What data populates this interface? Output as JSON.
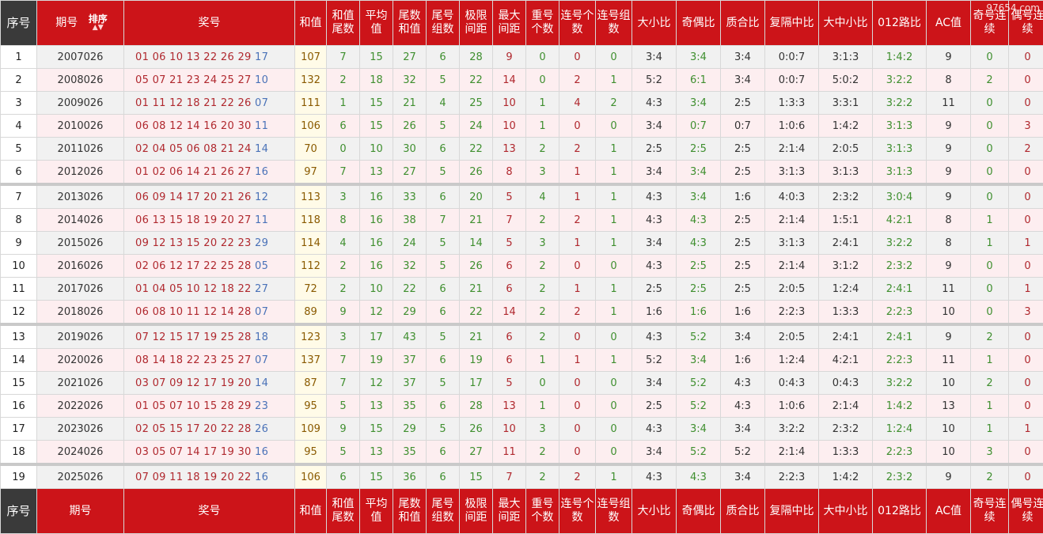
{
  "watermark": "97654.com",
  "header": {
    "seq": "序号",
    "period": "期号",
    "sort_label": "排序",
    "sort_arrows": "▲▼",
    "numbers": "奖号",
    "sum": "和值",
    "sum_tail": "和值尾数",
    "avg": "平均值",
    "tail_sum": "尾数和值",
    "tail_groups": "尾号组数",
    "range": "极限间距",
    "max_gap": "最大间距",
    "repeat": "重号个数",
    "consec_count": "连号个数",
    "consec_groups": "连号组数",
    "big_small": "大小比",
    "odd_even": "奇偶比",
    "prime_comp": "质合比",
    "repeat_gap_mid": "复隔中比",
    "big_mid_small": "大中小比",
    "mod012": "012路比",
    "ac": "AC值",
    "odd_consec": "奇号连续",
    "even_consec": "偶号连续"
  },
  "rows": [
    {
      "seq": "1",
      "period": "2007026",
      "reds": "01 06 10 13 22 26 29",
      "blue": "17",
      "sum": "107",
      "sum_tail": "7",
      "avg": "15",
      "tail_sum": "27",
      "tail_groups": "6",
      "range": "28",
      "max_gap": "9",
      "repeat": "0",
      "consec_count": "0",
      "consec_groups": "0",
      "big_small": "3:4",
      "odd_even": "3:4",
      "prime_comp": "3:4",
      "repeat_gap_mid": "0:0:7",
      "big_mid_small": "3:1:3",
      "mod012": "1:4:2",
      "ac": "9",
      "odd_consec": "0",
      "even_consec": "0"
    },
    {
      "seq": "2",
      "period": "2008026",
      "reds": "05 07 21 23 24 25 27",
      "blue": "10",
      "sum": "132",
      "sum_tail": "2",
      "avg": "18",
      "tail_sum": "32",
      "tail_groups": "5",
      "range": "22",
      "max_gap": "14",
      "repeat": "0",
      "consec_count": "2",
      "consec_groups": "1",
      "big_small": "5:2",
      "odd_even": "6:1",
      "prime_comp": "3:4",
      "repeat_gap_mid": "0:0:7",
      "big_mid_small": "5:0:2",
      "mod012": "3:2:2",
      "ac": "8",
      "odd_consec": "2",
      "even_consec": "0"
    },
    {
      "seq": "3",
      "period": "2009026",
      "reds": "01 11 12 18 21 22 26",
      "blue": "07",
      "sum": "111",
      "sum_tail": "1",
      "avg": "15",
      "tail_sum": "21",
      "tail_groups": "4",
      "range": "25",
      "max_gap": "10",
      "repeat": "1",
      "consec_count": "4",
      "consec_groups": "2",
      "big_small": "4:3",
      "odd_even": "3:4",
      "prime_comp": "2:5",
      "repeat_gap_mid": "1:3:3",
      "big_mid_small": "3:3:1",
      "mod012": "3:2:2",
      "ac": "11",
      "odd_consec": "0",
      "even_consec": "0"
    },
    {
      "seq": "4",
      "period": "2010026",
      "reds": "06 08 12 14 16 20 30",
      "blue": "11",
      "sum": "106",
      "sum_tail": "6",
      "avg": "15",
      "tail_sum": "26",
      "tail_groups": "5",
      "range": "24",
      "max_gap": "10",
      "repeat": "1",
      "consec_count": "0",
      "consec_groups": "0",
      "big_small": "3:4",
      "odd_even": "0:7",
      "prime_comp": "0:7",
      "repeat_gap_mid": "1:0:6",
      "big_mid_small": "1:4:2",
      "mod012": "3:1:3",
      "ac": "9",
      "odd_consec": "0",
      "even_consec": "3"
    },
    {
      "seq": "5",
      "period": "2011026",
      "reds": "02 04 05 06 08 21 24",
      "blue": "14",
      "sum": "70",
      "sum_tail": "0",
      "avg": "10",
      "tail_sum": "30",
      "tail_groups": "6",
      "range": "22",
      "max_gap": "13",
      "repeat": "2",
      "consec_count": "2",
      "consec_groups": "1",
      "big_small": "2:5",
      "odd_even": "2:5",
      "prime_comp": "2:5",
      "repeat_gap_mid": "2:1:4",
      "big_mid_small": "2:0:5",
      "mod012": "3:1:3",
      "ac": "9",
      "odd_consec": "0",
      "even_consec": "2"
    },
    {
      "seq": "6",
      "period": "2012026",
      "reds": "01 02 06 14 21 26 27",
      "blue": "16",
      "sum": "97",
      "sum_tail": "7",
      "avg": "13",
      "tail_sum": "27",
      "tail_groups": "5",
      "range": "26",
      "max_gap": "8",
      "repeat": "3",
      "consec_count": "1",
      "consec_groups": "1",
      "big_small": "3:4",
      "odd_even": "3:4",
      "prime_comp": "2:5",
      "repeat_gap_mid": "3:1:3",
      "big_mid_small": "3:1:3",
      "mod012": "3:1:3",
      "ac": "9",
      "odd_consec": "0",
      "even_consec": "0"
    },
    {
      "seq": "7",
      "period": "2013026",
      "reds": "06 09 14 17 20 21 26",
      "blue": "12",
      "sum": "113",
      "sum_tail": "3",
      "avg": "16",
      "tail_sum": "33",
      "tail_groups": "6",
      "range": "20",
      "max_gap": "5",
      "repeat": "4",
      "consec_count": "1",
      "consec_groups": "1",
      "big_small": "4:3",
      "odd_even": "3:4",
      "prime_comp": "1:6",
      "repeat_gap_mid": "4:0:3",
      "big_mid_small": "2:3:2",
      "mod012": "3:0:4",
      "ac": "9",
      "odd_consec": "0",
      "even_consec": "0"
    },
    {
      "seq": "8",
      "period": "2014026",
      "reds": "06 13 15 18 19 20 27",
      "blue": "11",
      "sum": "118",
      "sum_tail": "8",
      "avg": "16",
      "tail_sum": "38",
      "tail_groups": "7",
      "range": "21",
      "max_gap": "7",
      "repeat": "2",
      "consec_count": "2",
      "consec_groups": "1",
      "big_small": "4:3",
      "odd_even": "4:3",
      "prime_comp": "2:5",
      "repeat_gap_mid": "2:1:4",
      "big_mid_small": "1:5:1",
      "mod012": "4:2:1",
      "ac": "8",
      "odd_consec": "1",
      "even_consec": "0"
    },
    {
      "seq": "9",
      "period": "2015026",
      "reds": "09 12 13 15 20 22 23",
      "blue": "29",
      "sum": "114",
      "sum_tail": "4",
      "avg": "16",
      "tail_sum": "24",
      "tail_groups": "5",
      "range": "14",
      "max_gap": "5",
      "repeat": "3",
      "consec_count": "1",
      "consec_groups": "1",
      "big_small": "3:4",
      "odd_even": "4:3",
      "prime_comp": "2:5",
      "repeat_gap_mid": "3:1:3",
      "big_mid_small": "2:4:1",
      "mod012": "3:2:2",
      "ac": "8",
      "odd_consec": "1",
      "even_consec": "1"
    },
    {
      "seq": "10",
      "period": "2016026",
      "reds": "02 06 12 17 22 25 28",
      "blue": "05",
      "sum": "112",
      "sum_tail": "2",
      "avg": "16",
      "tail_sum": "32",
      "tail_groups": "5",
      "range": "26",
      "max_gap": "6",
      "repeat": "2",
      "consec_count": "0",
      "consec_groups": "0",
      "big_small": "4:3",
      "odd_even": "2:5",
      "prime_comp": "2:5",
      "repeat_gap_mid": "2:1:4",
      "big_mid_small": "3:1:2",
      "mod012": "2:3:2",
      "ac": "9",
      "odd_consec": "0",
      "even_consec": "0"
    },
    {
      "seq": "11",
      "period": "2017026",
      "reds": "01 04 05 10 12 18 22",
      "blue": "27",
      "sum": "72",
      "sum_tail": "2",
      "avg": "10",
      "tail_sum": "22",
      "tail_groups": "6",
      "range": "21",
      "max_gap": "6",
      "repeat": "2",
      "consec_count": "1",
      "consec_groups": "1",
      "big_small": "2:5",
      "odd_even": "2:5",
      "prime_comp": "2:5",
      "repeat_gap_mid": "2:0:5",
      "big_mid_small": "1:2:4",
      "mod012": "2:4:1",
      "ac": "11",
      "odd_consec": "0",
      "even_consec": "1"
    },
    {
      "seq": "12",
      "period": "2018026",
      "reds": "06 08 10 11 12 14 28",
      "blue": "07",
      "sum": "89",
      "sum_tail": "9",
      "avg": "12",
      "tail_sum": "29",
      "tail_groups": "6",
      "range": "22",
      "max_gap": "14",
      "repeat": "2",
      "consec_count": "2",
      "consec_groups": "1",
      "big_small": "1:6",
      "odd_even": "1:6",
      "prime_comp": "1:6",
      "repeat_gap_mid": "2:2:3",
      "big_mid_small": "1:3:3",
      "mod012": "2:2:3",
      "ac": "10",
      "odd_consec": "0",
      "even_consec": "3"
    },
    {
      "seq": "13",
      "period": "2019026",
      "reds": "07 12 15 17 19 25 28",
      "blue": "18",
      "sum": "123",
      "sum_tail": "3",
      "avg": "17",
      "tail_sum": "43",
      "tail_groups": "5",
      "range": "21",
      "max_gap": "6",
      "repeat": "2",
      "consec_count": "0",
      "consec_groups": "0",
      "big_small": "4:3",
      "odd_even": "5:2",
      "prime_comp": "3:4",
      "repeat_gap_mid": "2:0:5",
      "big_mid_small": "2:4:1",
      "mod012": "2:4:1",
      "ac": "9",
      "odd_consec": "2",
      "even_consec": "0"
    },
    {
      "seq": "14",
      "period": "2020026",
      "reds": "08 14 18 22 23 25 27",
      "blue": "07",
      "sum": "137",
      "sum_tail": "7",
      "avg": "19",
      "tail_sum": "37",
      "tail_groups": "6",
      "range": "19",
      "max_gap": "6",
      "repeat": "1",
      "consec_count": "1",
      "consec_groups": "1",
      "big_small": "5:2",
      "odd_even": "3:4",
      "prime_comp": "1:6",
      "repeat_gap_mid": "1:2:4",
      "big_mid_small": "4:2:1",
      "mod012": "2:2:3",
      "ac": "11",
      "odd_consec": "1",
      "even_consec": "0"
    },
    {
      "seq": "15",
      "period": "2021026",
      "reds": "03 07 09 12 17 19 20",
      "blue": "14",
      "sum": "87",
      "sum_tail": "7",
      "avg": "12",
      "tail_sum": "37",
      "tail_groups": "5",
      "range": "17",
      "max_gap": "5",
      "repeat": "0",
      "consec_count": "0",
      "consec_groups": "0",
      "big_small": "3:4",
      "odd_even": "5:2",
      "prime_comp": "4:3",
      "repeat_gap_mid": "0:4:3",
      "big_mid_small": "0:4:3",
      "mod012": "3:2:2",
      "ac": "10",
      "odd_consec": "2",
      "even_consec": "0"
    },
    {
      "seq": "16",
      "period": "2022026",
      "reds": "01 05 07 10 15 28 29",
      "blue": "23",
      "sum": "95",
      "sum_tail": "5",
      "avg": "13",
      "tail_sum": "35",
      "tail_groups": "6",
      "range": "28",
      "max_gap": "13",
      "repeat": "1",
      "consec_count": "0",
      "consec_groups": "0",
      "big_small": "2:5",
      "odd_even": "5:2",
      "prime_comp": "4:3",
      "repeat_gap_mid": "1:0:6",
      "big_mid_small": "2:1:4",
      "mod012": "1:4:2",
      "ac": "13",
      "odd_consec": "1",
      "even_consec": "0"
    },
    {
      "seq": "17",
      "period": "2023026",
      "reds": "02 05 15 17 20 22 28",
      "blue": "26",
      "sum": "109",
      "sum_tail": "9",
      "avg": "15",
      "tail_sum": "29",
      "tail_groups": "5",
      "range": "26",
      "max_gap": "10",
      "repeat": "3",
      "consec_count": "0",
      "consec_groups": "0",
      "big_small": "4:3",
      "odd_even": "3:4",
      "prime_comp": "3:4",
      "repeat_gap_mid": "3:2:2",
      "big_mid_small": "2:3:2",
      "mod012": "1:2:4",
      "ac": "10",
      "odd_consec": "1",
      "even_consec": "1"
    },
    {
      "seq": "18",
      "period": "2024026",
      "reds": "03 05 07 14 17 19 30",
      "blue": "16",
      "sum": "95",
      "sum_tail": "5",
      "avg": "13",
      "tail_sum": "35",
      "tail_groups": "6",
      "range": "27",
      "max_gap": "11",
      "repeat": "2",
      "consec_count": "0",
      "consec_groups": "0",
      "big_small": "3:4",
      "odd_even": "5:2",
      "prime_comp": "5:2",
      "repeat_gap_mid": "2:1:4",
      "big_mid_small": "1:3:3",
      "mod012": "2:2:3",
      "ac": "10",
      "odd_consec": "3",
      "even_consec": "0"
    },
    {
      "seq": "19",
      "period": "2025026",
      "reds": "07 09 11 18 19 20 22",
      "blue": "16",
      "sum": "106",
      "sum_tail": "6",
      "avg": "15",
      "tail_sum": "36",
      "tail_groups": "6",
      "range": "15",
      "max_gap": "7",
      "repeat": "2",
      "consec_count": "2",
      "consec_groups": "1",
      "big_small": "4:3",
      "odd_even": "4:3",
      "prime_comp": "3:4",
      "repeat_gap_mid": "2:2:3",
      "big_mid_small": "1:4:2",
      "mod012": "2:3:2",
      "ac": "9",
      "odd_consec": "2",
      "even_consec": "0"
    }
  ]
}
